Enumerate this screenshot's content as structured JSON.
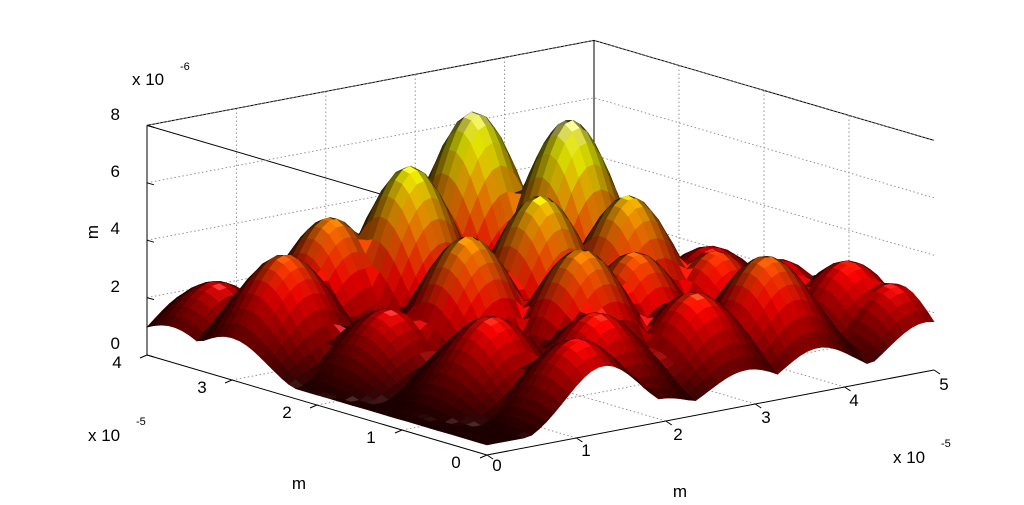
{
  "chart_data": {
    "type": "surface3d",
    "title": "",
    "colormap": "hot",
    "shading": "interp",
    "lighting": true,
    "grid": "on (dotted)",
    "axes": {
      "x": {
        "label": "m",
        "lim": [
          0,
          5
        ],
        "ticks": [
          "0",
          "1",
          "2",
          "3",
          "4",
          "5"
        ],
        "multiplier_base": "x 10",
        "multiplier_exp": "-5"
      },
      "y": {
        "label": "m",
        "lim": [
          0,
          4
        ],
        "ticks": [
          "0",
          "1",
          "2",
          "3",
          "4"
        ],
        "multiplier_base": "x 10",
        "multiplier_exp": "-5"
      },
      "z": {
        "label": "m",
        "lim": [
          0,
          8
        ],
        "ticks": [
          "0",
          "2",
          "4",
          "6",
          "8"
        ],
        "multiplier_base": "x 10",
        "multiplier_exp": "-6"
      }
    },
    "peaks": [
      {
        "x": 0.5,
        "y": 3.7,
        "z": 2.5
      },
      {
        "x": 0.6,
        "y": 3.0,
        "z": 4.0
      },
      {
        "x": 1.3,
        "y": 3.2,
        "z": 4.7
      },
      {
        "x": 0.9,
        "y": 2.1,
        "z": 2.7
      },
      {
        "x": 1.9,
        "y": 2.9,
        "z": 6.4
      },
      {
        "x": 1.6,
        "y": 1.9,
        "z": 5.0
      },
      {
        "x": 1.1,
        "y": 1.1,
        "z": 3.2
      },
      {
        "x": 1.3,
        "y": 0.3,
        "z": 3.0
      },
      {
        "x": 3.0,
        "y": 3.3,
        "z": 7.3
      },
      {
        "x": 3.4,
        "y": 2.6,
        "z": 7.4
      },
      {
        "x": 2.5,
        "y": 2.0,
        "z": 5.8
      },
      {
        "x": 3.3,
        "y": 1.8,
        "z": 5.5
      },
      {
        "x": 2.2,
        "y": 1.2,
        "z": 4.8
      },
      {
        "x": 2.9,
        "y": 1.3,
        "z": 4.2
      },
      {
        "x": 1.9,
        "y": 0.7,
        "z": 3.2
      },
      {
        "x": 2.9,
        "y": 0.6,
        "z": 3.4
      },
      {
        "x": 3.8,
        "y": 1.3,
        "z": 3.7
      },
      {
        "x": 3.7,
        "y": 0.6,
        "z": 4.2
      },
      {
        "x": 4.5,
        "y": 1.3,
        "z": 3.0
      },
      {
        "x": 4.8,
        "y": 0.8,
        "z": 3.2
      },
      {
        "x": 4.9,
        "y": 0.4,
        "z": 2.7
      },
      {
        "x": 4.6,
        "y": 2.2,
        "z": 2.6
      }
    ]
  }
}
